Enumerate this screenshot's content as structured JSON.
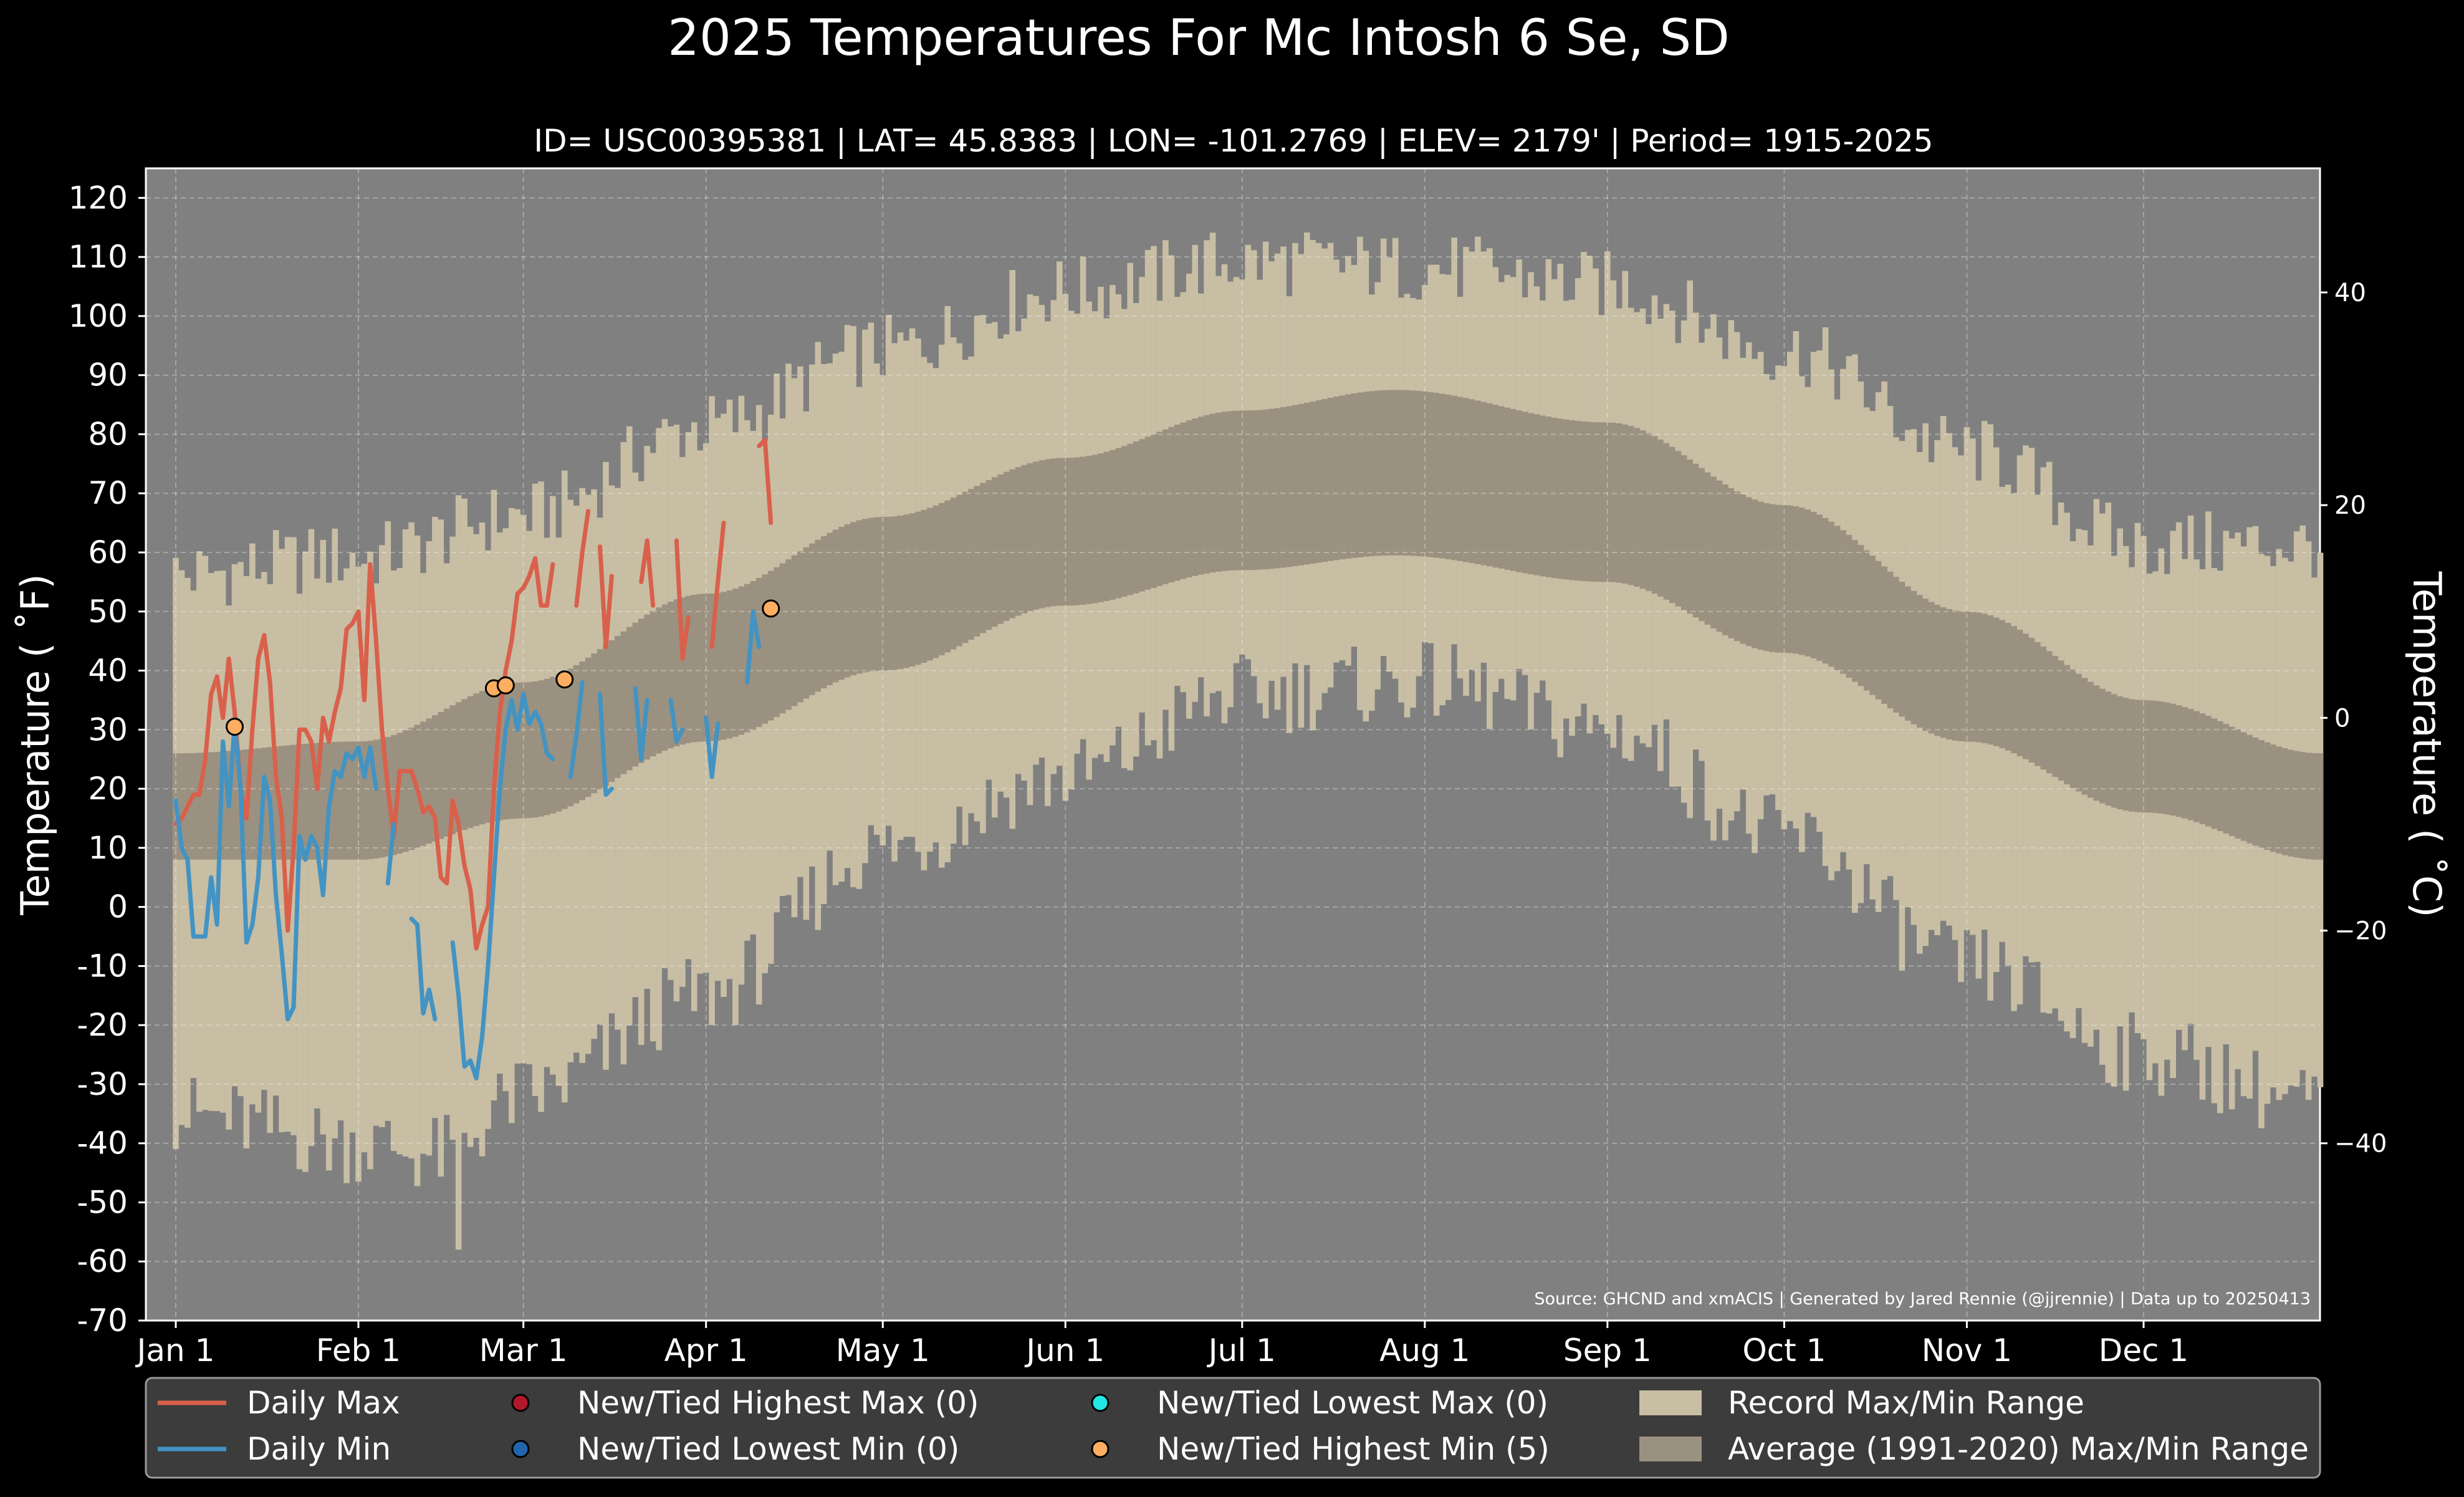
{
  "chart_data": {
    "type": "line",
    "title": "2025 Temperatures For Mc Intosh 6 Se, SD",
    "subtitle": "ID= USC00395381 | LAT= 45.8383 | LON= -101.2769 | ELEV= 2179' | Period= 1915-2025",
    "ylabel_left": "Temperature ( ˚F)",
    "ylabel_right": "Temperature ( ˚C)",
    "source": "Source: GHCND and xmACIS | Generated by Jared Rennie (@jjrennie) | Data up to 20250413",
    "ylim_f": [
      -70,
      125
    ],
    "y_ticks_f": [
      "120",
      "110",
      "100",
      "90",
      "80",
      "70",
      "60",
      "50",
      "40",
      "30",
      "20",
      "10",
      "0",
      "-10",
      "-20",
      "-30",
      "-40",
      "-50",
      "-60",
      "-70"
    ],
    "y_ticks_c": [
      "40",
      "20",
      "0",
      "−20",
      "−40"
    ],
    "x_ticks": [
      "Jan 1",
      "Feb 1",
      "Mar 1",
      "Apr 1",
      "May 1",
      "Jun 1",
      "Jul 1",
      "Aug 1",
      "Sep 1",
      "Oct 1",
      "Nov 1",
      "Dec 1"
    ],
    "x_tick_days": [
      1,
      32,
      60,
      91,
      121,
      152,
      182,
      213,
      244,
      274,
      305,
      335
    ],
    "record_max_anchor": [
      [
        1,
        55
      ],
      [
        32,
        58
      ],
      [
        60,
        65
      ],
      [
        91,
        80
      ],
      [
        121,
        93
      ],
      [
        152,
        103
      ],
      [
        182,
        108
      ],
      [
        213,
        107
      ],
      [
        244,
        104
      ],
      [
        274,
        93
      ],
      [
        305,
        76
      ],
      [
        335,
        60
      ],
      [
        365,
        60
      ]
    ],
    "record_min_anchor": [
      [
        1,
        -35
      ],
      [
        32,
        -40
      ],
      [
        46,
        -42
      ],
      [
        60,
        -32
      ],
      [
        91,
        -15
      ],
      [
        121,
        10
      ],
      [
        152,
        22
      ],
      [
        182,
        36
      ],
      [
        213,
        38
      ],
      [
        244,
        30
      ],
      [
        274,
        12
      ],
      [
        305,
        -10
      ],
      [
        335,
        -25
      ],
      [
        365,
        -33
      ]
    ],
    "average_max_anchor": [
      [
        1,
        26
      ],
      [
        32,
        28
      ],
      [
        60,
        38
      ],
      [
        91,
        53
      ],
      [
        121,
        66
      ],
      [
        152,
        76
      ],
      [
        182,
        84
      ],
      [
        208,
        87.5
      ],
      [
        244,
        82
      ],
      [
        274,
        68
      ],
      [
        305,
        50
      ],
      [
        335,
        35
      ],
      [
        365,
        26
      ]
    ],
    "average_min_anchor": [
      [
        1,
        8
      ],
      [
        32,
        8
      ],
      [
        60,
        15
      ],
      [
        91,
        28
      ],
      [
        121,
        40
      ],
      [
        152,
        51
      ],
      [
        182,
        57
      ],
      [
        208,
        59.5
      ],
      [
        244,
        55
      ],
      [
        274,
        43
      ],
      [
        305,
        28
      ],
      [
        335,
        16
      ],
      [
        365,
        8
      ]
    ],
    "series": [
      {
        "name": "Daily Max",
        "color": "#d9604b",
        "segments": [
          [
            [
              1,
              14
            ],
            [
              2,
              15
            ],
            [
              3,
              17
            ],
            [
              4,
              19
            ],
            [
              5,
              19
            ],
            [
              6,
              25
            ],
            [
              7,
              36
            ],
            [
              8,
              39
            ],
            [
              9,
              32
            ],
            [
              10,
              42
            ],
            [
              11,
              33
            ],
            [
              12,
              20
            ],
            [
              13,
              15
            ],
            [
              14,
              30
            ],
            [
              15,
              42
            ],
            [
              16,
              46
            ],
            [
              17,
              38
            ],
            [
              18,
              22
            ],
            [
              19,
              15
            ],
            [
              20,
              -4
            ],
            [
              21,
              10
            ],
            [
              22,
              30
            ],
            [
              23,
              30
            ],
            [
              24,
              28
            ],
            [
              25,
              20
            ],
            [
              26,
              32
            ],
            [
              27,
              28
            ],
            [
              28,
              33
            ],
            [
              29,
              37
            ],
            [
              30,
              47
            ],
            [
              31,
              48
            ],
            [
              32,
              50
            ],
            [
              33,
              35
            ],
            [
              34,
              58
            ],
            [
              35,
              45
            ],
            [
              36,
              30
            ],
            [
              37,
              20
            ],
            [
              38,
              12
            ],
            [
              39,
              23
            ],
            [
              40,
              23
            ],
            [
              41,
              23
            ],
            [
              42,
              20
            ],
            [
              43,
              16
            ],
            [
              44,
              17
            ],
            [
              45,
              15
            ],
            [
              46,
              5
            ],
            [
              47,
              4
            ],
            [
              48,
              18
            ],
            [
              49,
              14
            ],
            [
              50,
              7
            ],
            [
              51,
              3
            ],
            [
              52,
              -7
            ],
            [
              53,
              -3
            ],
            [
              54,
              0
            ],
            [
              55,
              20
            ],
            [
              56,
              33
            ],
            [
              57,
              40
            ],
            [
              58,
              45
            ],
            [
              59,
              53
            ],
            [
              60,
              54
            ],
            [
              61,
              56
            ],
            [
              62,
              59
            ],
            [
              63,
              51
            ],
            [
              64,
              51
            ],
            [
              65,
              58
            ]
          ],
          [
            [
              69,
              51
            ],
            [
              70,
              60
            ],
            [
              71,
              67
            ]
          ],
          [
            [
              73,
              61
            ],
            [
              74,
              44
            ],
            [
              75,
              56
            ]
          ],
          [
            [
              80,
              55
            ],
            [
              81,
              62
            ],
            [
              82,
              51
            ]
          ],
          [
            [
              86,
              62
            ],
            [
              87,
              42
            ],
            [
              88,
              49
            ]
          ],
          [
            [
              92,
              44
            ],
            [
              93,
              55
            ],
            [
              94,
              65
            ]
          ],
          [
            [
              100,
              78
            ],
            [
              101,
              79
            ],
            [
              102,
              65
            ]
          ]
        ]
      },
      {
        "name": "Daily Min",
        "color": "#4393c3",
        "segments": [
          [
            [
              1,
              18
            ],
            [
              2,
              10
            ],
            [
              3,
              8
            ],
            [
              4,
              -5
            ],
            [
              5,
              -5
            ],
            [
              6,
              -5
            ],
            [
              7,
              5
            ],
            [
              8,
              -3
            ],
            [
              9,
              28
            ],
            [
              10,
              17
            ],
            [
              11,
              31
            ],
            [
              12,
              20
            ],
            [
              13,
              -6
            ],
            [
              14,
              -3
            ],
            [
              15,
              5
            ],
            [
              16,
              22
            ],
            [
              17,
              18
            ],
            [
              18,
              2
            ],
            [
              19,
              -8
            ],
            [
              20,
              -19
            ],
            [
              21,
              -17
            ],
            [
              22,
              12
            ],
            [
              23,
              8
            ],
            [
              24,
              12
            ],
            [
              25,
              10
            ],
            [
              26,
              2
            ],
            [
              27,
              17
            ],
            [
              28,
              23
            ],
            [
              29,
              22
            ],
            [
              30,
              26
            ],
            [
              31,
              25
            ],
            [
              32,
              27
            ],
            [
              33,
              22
            ],
            [
              34,
              27
            ],
            [
              35,
              20
            ]
          ],
          [
            [
              37,
              4
            ],
            [
              38,
              14
            ]
          ],
          [
            [
              41,
              -2
            ],
            [
              42,
              -3
            ],
            [
              43,
              -18
            ],
            [
              44,
              -14
            ],
            [
              45,
              -19
            ]
          ],
          [
            [
              48,
              -6
            ],
            [
              49,
              -15
            ],
            [
              50,
              -27
            ],
            [
              51,
              -26
            ],
            [
              52,
              -29
            ],
            [
              53,
              -22
            ],
            [
              54,
              -10
            ],
            [
              55,
              5
            ],
            [
              56,
              20
            ],
            [
              57,
              30
            ],
            [
              58,
              35
            ],
            [
              59,
              30
            ],
            [
              60,
              36
            ],
            [
              61,
              31
            ],
            [
              62,
              33
            ],
            [
              63,
              31
            ],
            [
              64,
              26
            ],
            [
              65,
              25
            ]
          ],
          [
            [
              68,
              22
            ],
            [
              69,
              29
            ],
            [
              70,
              38
            ]
          ],
          [
            [
              73,
              36
            ],
            [
              74,
              19
            ],
            [
              75,
              20
            ]
          ],
          [
            [
              79,
              37
            ],
            [
              80,
              25
            ],
            [
              81,
              35
            ]
          ],
          [
            [
              85,
              35
            ],
            [
              86,
              28
            ],
            [
              87,
              30
            ]
          ],
          [
            [
              91,
              32
            ],
            [
              92,
              22
            ],
            [
              93,
              31
            ]
          ],
          [
            [
              98,
              38
            ],
            [
              99,
              50
            ],
            [
              100,
              44
            ]
          ]
        ]
      }
    ],
    "record_markers": [
      {
        "name": "New/Tied Highest Min",
        "color": "#fdae61",
        "points": [
          [
            11,
            30.5
          ],
          [
            55,
            37
          ],
          [
            57,
            37.5
          ],
          [
            67,
            38.5
          ],
          [
            102,
            50.5
          ]
        ]
      }
    ],
    "legend": {
      "entries": [
        {
          "label": "Daily Max",
          "kind": "line",
          "color": "#d9604b"
        },
        {
          "label": "Daily Min",
          "kind": "line",
          "color": "#4393c3"
        },
        {
          "label": "New/Tied Highest Max (0)",
          "kind": "dot",
          "color": "#b2182b"
        },
        {
          "label": "New/Tied Lowest Min (0)",
          "kind": "dot",
          "color": "#2166ac"
        },
        {
          "label": "New/Tied Lowest Max (0)",
          "kind": "dot",
          "color": "#22e6e6"
        },
        {
          "label": "New/Tied Highest Min (5)",
          "kind": "dot",
          "color": "#fdae61"
        },
        {
          "label": "Record Max/Min Range",
          "kind": "patch",
          "color": "#c8bea4"
        },
        {
          "label": "Average (1991-2020) Max/Min Range",
          "kind": "patch",
          "color": "#9b9180"
        }
      ]
    },
    "colors": {
      "background": "#000000",
      "plot_background": "#808080",
      "record_range": "#c8bea4",
      "average_range": "#9b9180",
      "legend_background": "#3c3c3c"
    }
  }
}
